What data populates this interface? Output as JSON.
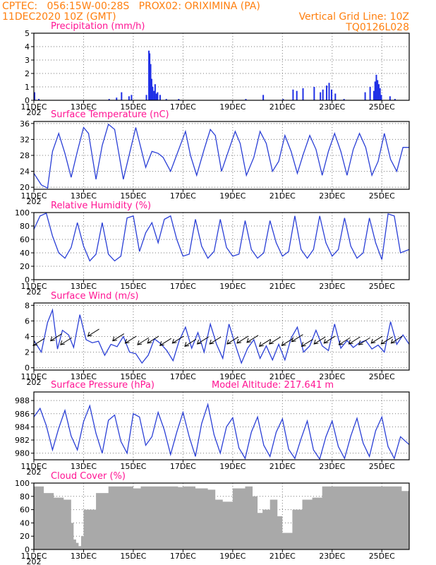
{
  "header": {
    "line1_left": "CPTEC:   056:15W-00:28S   PROX02: ORIXIMINA (PA)",
    "line2_left": "11DEC2020 10Z (GMT)",
    "line2_right": "Vertical Grid Line: 10Z",
    "line3_right": "TQ0126L028"
  },
  "colors": {
    "header": "#ff7f0e",
    "panel_title": "#ff1493",
    "series": "#2a3fd6",
    "bars": "#1f2fe6",
    "cloud": "#a9a9a9",
    "grid": "#7a7a7a"
  },
  "x_axis": {
    "ticks": [
      "11DEC",
      "13DEC",
      "15DEC",
      "17DEC",
      "19DEC",
      "21DEC",
      "23DEC",
      "25DEC"
    ],
    "first_tick_year_fragment": "202",
    "range_days": [
      0,
      15.1
    ]
  },
  "chart_data": [
    {
      "id": "precip",
      "type": "bar",
      "title": "Precipitation (mm/h)",
      "ylim": [
        0,
        5
      ],
      "yticks": [
        "0",
        "1",
        "2",
        "3",
        "4",
        "5"
      ],
      "grid": true,
      "x": [
        0,
        0.17,
        3.0,
        3.3,
        3.5,
        3.8,
        3.9,
        4.5,
        4.6,
        4.63,
        4.67,
        4.71,
        4.75,
        4.8,
        4.85,
        4.9,
        4.95,
        5.05,
        5.3,
        5.8,
        8.5,
        9.2,
        10.0,
        10.4,
        10.55,
        10.8,
        11.25,
        11.5,
        11.6,
        11.75,
        11.85,
        11.95,
        12.1,
        12.45,
        13.3,
        13.5,
        13.65,
        13.7,
        13.75,
        13.8,
        13.85,
        13.9,
        13.95,
        14.3,
        14.5
      ],
      "values": [
        0.6,
        0.1,
        0.1,
        0.2,
        0.6,
        0.3,
        0.4,
        0.4,
        3.7,
        3.5,
        2.7,
        1.6,
        1.0,
        0.7,
        1.2,
        0.5,
        0.6,
        0.4,
        0.1,
        0.1,
        0.1,
        0.4,
        0.1,
        0.8,
        0.7,
        0.9,
        1.0,
        0.6,
        0.8,
        1.1,
        1.3,
        0.8,
        0.5,
        0.1,
        0.6,
        1.0,
        0.7,
        1.4,
        1.9,
        1.5,
        1.2,
        0.9,
        0.4,
        0.3,
        0.1
      ]
    },
    {
      "id": "temp",
      "type": "line",
      "title": "Surface Temperature (nC)",
      "ylim": [
        19.5,
        36.5
      ],
      "yticks": [
        "20",
        "24",
        "28",
        "32",
        "36"
      ],
      "ytick_values": [
        20,
        24,
        28,
        32,
        36
      ],
      "grid": true,
      "x": [
        0,
        0.3,
        0.55,
        0.75,
        1.0,
        1.25,
        1.5,
        1.75,
        2.0,
        2.2,
        2.5,
        2.75,
        3.0,
        3.25,
        3.6,
        3.85,
        4.1,
        4.3,
        4.5,
        4.75,
        5.0,
        5.2,
        5.5,
        5.8,
        6.1,
        6.3,
        6.55,
        6.85,
        7.1,
        7.3,
        7.55,
        7.85,
        8.1,
        8.3,
        8.55,
        8.85,
        9.1,
        9.35,
        9.6,
        9.85,
        10.1,
        10.35,
        10.6,
        10.85,
        11.1,
        11.35,
        11.6,
        11.85,
        12.1,
        12.35,
        12.6,
        12.85,
        13.1,
        13.35,
        13.6,
        13.85,
        14.1,
        14.35,
        14.6,
        14.85,
        15.1
      ],
      "values": [
        23.5,
        20.6,
        19.8,
        29.0,
        33.5,
        28.5,
        22.5,
        29.0,
        35.0,
        33.5,
        22.0,
        30.5,
        35.8,
        34.5,
        22.0,
        28.5,
        35.0,
        30.0,
        25.0,
        29.0,
        28.5,
        27.5,
        24.0,
        29.0,
        34.0,
        28.0,
        23.0,
        29.5,
        34.5,
        33.0,
        24.0,
        29.5,
        34.0,
        31.0,
        23.0,
        27.5,
        34.0,
        31.0,
        24.0,
        26.5,
        33.0,
        29.0,
        23.5,
        28.5,
        33.0,
        29.5,
        23.0,
        29.0,
        33.5,
        29.0,
        23.0,
        29.5,
        33.5,
        30.0,
        23.0,
        26.5,
        33.5,
        27.0,
        24.0,
        30.0,
        30.0
      ]
    },
    {
      "id": "rh",
      "type": "line",
      "title": "Relative Humidity (%)",
      "ylim": [
        0,
        100
      ],
      "yticks": [
        "0",
        "20",
        "40",
        "60",
        "80",
        "100"
      ],
      "ytick_values": [
        0,
        20,
        40,
        60,
        80,
        100
      ],
      "grid": true,
      "x": [
        0,
        0.25,
        0.5,
        0.75,
        1.0,
        1.25,
        1.5,
        1.75,
        2.0,
        2.25,
        2.5,
        2.75,
        3.0,
        3.25,
        3.5,
        3.75,
        4.0,
        4.25,
        4.5,
        4.75,
        5.0,
        5.25,
        5.5,
        5.75,
        6.0,
        6.25,
        6.5,
        6.75,
        7.0,
        7.25,
        7.5,
        7.75,
        8.0,
        8.25,
        8.5,
        8.75,
        9.0,
        9.25,
        9.5,
        9.75,
        10.0,
        10.25,
        10.5,
        10.75,
        11.0,
        11.25,
        11.5,
        11.75,
        12.0,
        12.25,
        12.5,
        12.75,
        13.0,
        13.25,
        13.5,
        13.75,
        14.0,
        14.25,
        14.5,
        14.75,
        15.1
      ],
      "values": [
        75,
        95,
        99,
        65,
        40,
        32,
        48,
        85,
        50,
        28,
        38,
        85,
        38,
        28,
        35,
        92,
        95,
        42,
        70,
        85,
        55,
        90,
        95,
        60,
        35,
        38,
        90,
        50,
        32,
        42,
        90,
        48,
        35,
        38,
        88,
        45,
        32,
        40,
        88,
        55,
        35,
        42,
        95,
        45,
        32,
        45,
        95,
        55,
        35,
        45,
        92,
        50,
        32,
        40,
        92,
        55,
        30,
        98,
        95,
        40,
        45
      ]
    },
    {
      "id": "wind",
      "type": "line",
      "title": "Surface Wind (m/s)",
      "ylim": [
        -0.3,
        8.3
      ],
      "yticks": [
        "0",
        "2",
        "4",
        "6",
        "8"
      ],
      "ytick_values": [
        0,
        2,
        4,
        6,
        8
      ],
      "grid": true,
      "x": [
        0,
        0.3,
        0.55,
        0.75,
        0.95,
        1.15,
        1.4,
        1.6,
        1.85,
        2.1,
        2.35,
        2.6,
        2.85,
        3.1,
        3.35,
        3.6,
        3.85,
        4.1,
        4.35,
        4.6,
        4.85,
        5.1,
        5.35,
        5.6,
        5.85,
        6.1,
        6.35,
        6.6,
        6.85,
        7.1,
        7.35,
        7.6,
        7.85,
        8.1,
        8.35,
        8.6,
        8.85,
        9.1,
        9.35,
        9.6,
        9.85,
        10.1,
        10.35,
        10.6,
        10.85,
        11.1,
        11.35,
        11.6,
        11.85,
        12.1,
        12.35,
        12.6,
        12.85,
        13.1,
        13.35,
        13.6,
        13.85,
        14.1,
        14.35,
        14.6,
        14.85,
        15.1
      ],
      "values": [
        3.5,
        2.0,
        5.8,
        7.4,
        2.4,
        4.8,
        4.2,
        2.6,
        6.8,
        3.6,
        3.2,
        3.4,
        1.6,
        3.0,
        2.7,
        4.0,
        2.0,
        1.8,
        0.6,
        1.6,
        3.7,
        3.1,
        2.2,
        0.9,
        3.5,
        5.2,
        2.5,
        4.5,
        2.0,
        5.6,
        3.0,
        1.2,
        5.6,
        3.0,
        0.6,
        2.5,
        3.6,
        1.2,
        2.8,
        1.0,
        3.0,
        1.0,
        3.8,
        5.2,
        2.0,
        2.8,
        4.8,
        2.8,
        2.2,
        5.6,
        2.5,
        3.5,
        2.6,
        3.2,
        3.5,
        2.4,
        2.9,
        2.0,
        5.9,
        3.0,
        4.2,
        3.0
      ],
      "vectors_x": [
        0.2,
        0.9,
        1.3,
        2.4,
        3.4,
        3.9,
        4.4,
        4.8,
        5.3,
        5.8,
        6.3,
        6.8,
        7.3,
        8.0,
        8.4,
        8.8,
        9.3,
        9.7,
        10.2,
        10.6,
        11.0,
        11.5,
        11.9,
        12.5,
        12.9,
        13.3,
        13.8,
        14.2,
        14.6
      ],
      "vectors_y": [
        3.3,
        3.9,
        3.4,
        4.5,
        3.9,
        3.6,
        3.4,
        3.6,
        3.3,
        3.6,
        3.2,
        3.5,
        3.5,
        3.5,
        3.6,
        3.7,
        3.2,
        3.5,
        3.3,
        3.8,
        3.2,
        3.5,
        3.6,
        3.4,
        3.5,
        3.4,
        3.6,
        3.5,
        3.6
      ]
    },
    {
      "id": "pressure",
      "type": "line",
      "title": "Surface Pressure (hPa)",
      "annotation": "Model Altitude: 217.641 m",
      "ylim": [
        979,
        989.3
      ],
      "yticks": [
        "980",
        "982",
        "984",
        "986",
        "988"
      ],
      "ytick_values": [
        980,
        982,
        984,
        986,
        988
      ],
      "grid": true,
      "x": [
        0,
        0.25,
        0.5,
        0.75,
        1.0,
        1.25,
        1.5,
        1.75,
        2.0,
        2.25,
        2.5,
        2.75,
        3.0,
        3.25,
        3.5,
        3.75,
        4.0,
        4.25,
        4.5,
        4.75,
        5.0,
        5.25,
        5.5,
        5.75,
        6.0,
        6.25,
        6.5,
        6.75,
        7.0,
        7.25,
        7.5,
        7.75,
        8.0,
        8.25,
        8.5,
        8.75,
        9.0,
        9.25,
        9.5,
        9.75,
        10.0,
        10.25,
        10.5,
        10.75,
        11.0,
        11.25,
        11.5,
        11.75,
        12.0,
        12.25,
        12.5,
        12.75,
        13.0,
        13.25,
        13.5,
        13.75,
        14.0,
        14.25,
        14.5,
        14.75,
        15.1
      ],
      "values": [
        985.5,
        986.8,
        984.2,
        980.5,
        983.8,
        986.5,
        982.6,
        980.5,
        984.8,
        987.2,
        983.0,
        980.0,
        985.0,
        985.8,
        981.8,
        980.0,
        986.0,
        985.5,
        981.2,
        982.5,
        986.2,
        983.5,
        979.8,
        983.2,
        986.2,
        982.5,
        979.5,
        984.5,
        987.4,
        982.8,
        980.0,
        984.0,
        985.4,
        980.8,
        979.2,
        983.2,
        985.5,
        981.2,
        979.5,
        983.2,
        985.2,
        980.6,
        979.2,
        982.2,
        984.9,
        980.5,
        979.1,
        982.5,
        984.9,
        981.0,
        979.2,
        982.6,
        985.3,
        981.5,
        979.5,
        983.4,
        985.5,
        981.0,
        979.2,
        982.5,
        981.3
      ]
    },
    {
      "id": "cloud",
      "type": "bar",
      "title": "Cloud Cover (%)",
      "ylim": [
        0,
        100
      ],
      "yticks": [
        "0",
        "20",
        "40",
        "60",
        "80",
        "100"
      ],
      "grid": true,
      "x": [
        0,
        0.4,
        0.8,
        1.2,
        1.5,
        1.6,
        1.7,
        1.8,
        1.9,
        2.0,
        2.5,
        3.0,
        3.5,
        4.0,
        4.3,
        4.5,
        5.0,
        5.5,
        5.8,
        6.0,
        6.5,
        7.0,
        7.3,
        7.6,
        8.0,
        8.5,
        8.8,
        9.0,
        9.2,
        9.5,
        9.8,
        10.0,
        10.4,
        10.8,
        11.2,
        11.6,
        12.0,
        12.4,
        12.8,
        13.2,
        13.6,
        14.0,
        14.4,
        14.8
      ],
      "values": [
        95,
        85,
        78,
        75,
        40,
        15,
        10,
        5,
        20,
        60,
        85,
        95,
        95,
        92,
        95,
        95,
        95,
        95,
        94,
        95,
        92,
        90,
        75,
        72,
        92,
        95,
        80,
        55,
        60,
        75,
        50,
        25,
        60,
        75,
        78,
        95,
        95,
        95,
        95,
        95,
        95,
        95,
        95,
        88
      ]
    }
  ]
}
